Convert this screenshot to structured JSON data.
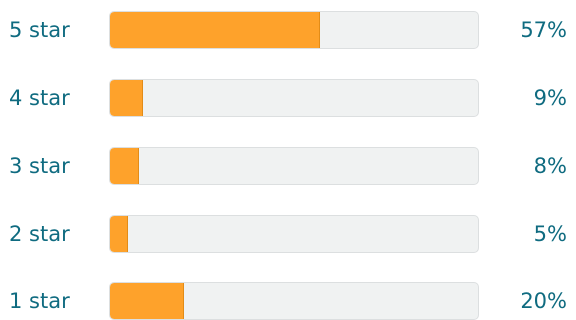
{
  "rating_histogram": {
    "colors": {
      "text": "#0f6b80",
      "bar_fill": "#fea22b",
      "bar_track": "#f0f2f2"
    },
    "rows": [
      {
        "label": "5 star",
        "percent_text": "57%",
        "fraction": 0.57
      },
      {
        "label": "4 star",
        "percent_text": "9%",
        "fraction": 0.09
      },
      {
        "label": "3 star",
        "percent_text": "8%",
        "fraction": 0.08
      },
      {
        "label": "2 star",
        "percent_text": "5%",
        "fraction": 0.05
      },
      {
        "label": "1 star",
        "percent_text": "20%",
        "fraction": 0.2
      }
    ]
  }
}
